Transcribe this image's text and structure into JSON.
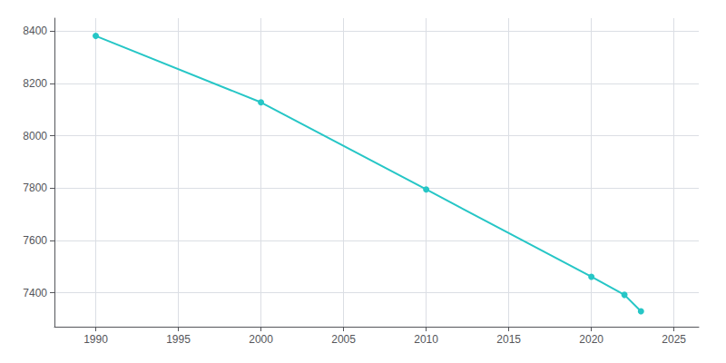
{
  "chart_data": {
    "type": "line",
    "x": [
      1990,
      2000,
      2010,
      2020,
      2022,
      2023
    ],
    "values": [
      8382,
      8128,
      7795,
      7461,
      7392,
      7329
    ],
    "color": "#26C6C6",
    "marker": "circle",
    "xlim": [
      1987.5,
      2026.5
    ],
    "xticks": [
      1990,
      1995,
      2000,
      2005,
      2010,
      2015,
      2020,
      2025
    ],
    "ylim": [
      7270,
      8450
    ],
    "yticks": [
      7400,
      7600,
      7800,
      8000,
      8200,
      8400
    ],
    "grid": true
  }
}
